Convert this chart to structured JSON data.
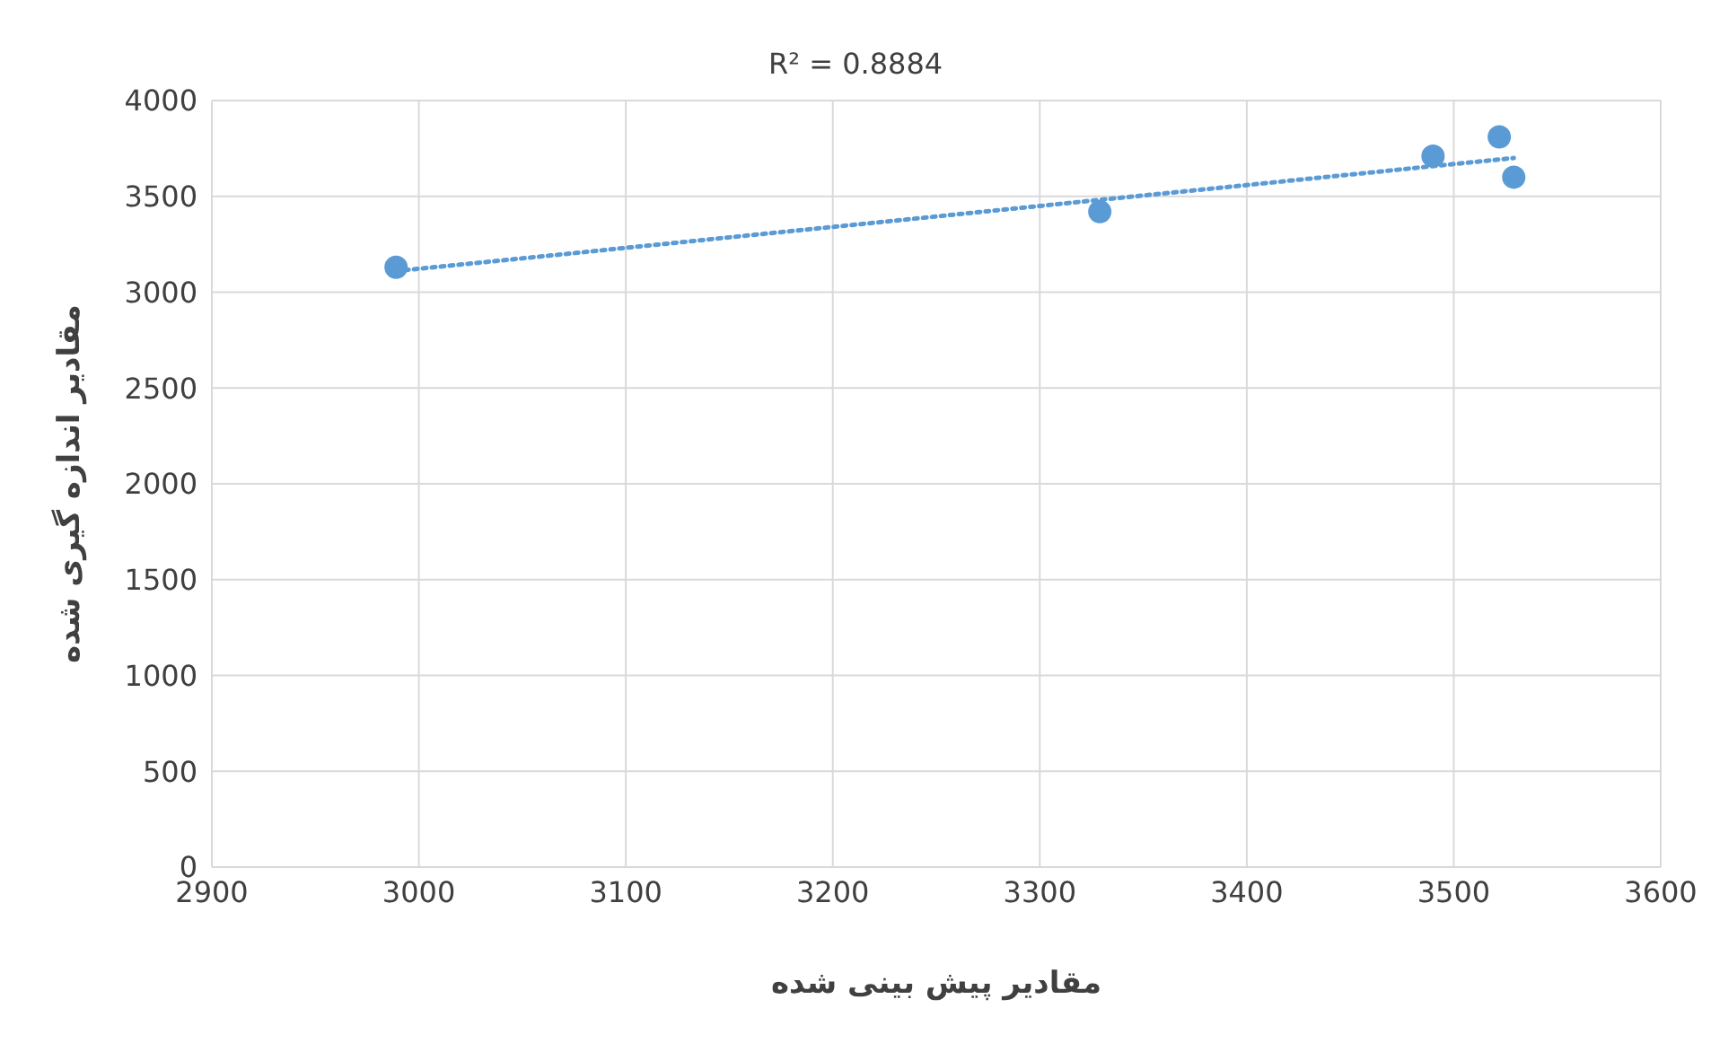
{
  "chart_data": {
    "type": "scatter",
    "xlabel": "مقادیر پیش بینی شده",
    "ylabel": "مقادیر اندازه گیری شده",
    "annotations": [
      "R² = 0.8884"
    ],
    "xlim": [
      2900,
      3600
    ],
    "xticks": [
      2900,
      3000,
      3100,
      3200,
      3300,
      3400,
      3500,
      3600
    ],
    "ylim": [
      0,
      4000
    ],
    "yticks": [
      0,
      500,
      1000,
      1500,
      2000,
      2500,
      3000,
      3500,
      4000
    ],
    "grid": true,
    "marker": "circle",
    "series": [
      {
        "color": "#5b9bd5",
        "x": [
          2989,
          3329,
          3490,
          3522,
          3529
        ],
        "values": [
          3130,
          3420,
          3710,
          3810,
          3600
        ]
      },
      {
        "type": "line",
        "color": "#5b9bd5",
        "line_style": "dotted",
        "marker": "none",
        "x": [
          2989,
          3529
        ],
        "values": [
          3110,
          3700
        ]
      }
    ]
  }
}
